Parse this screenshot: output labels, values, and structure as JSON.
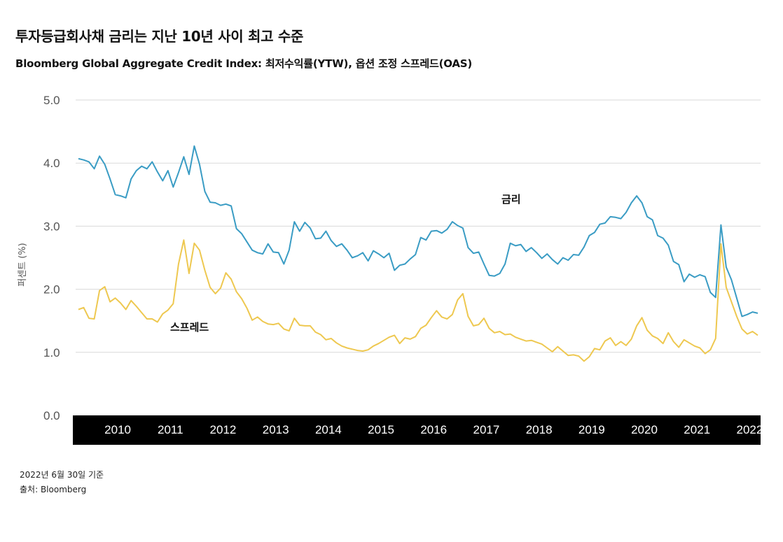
{
  "title": "투자등급회사채 금리는 지난 10년 사이 최고 수준",
  "subtitle": "Bloomberg Global Aggregate Credit Index: 최저수익률(YTW), 옵션 조정 스프레드(OAS)",
  "footnote_date": "2022년 6월 30일 기준",
  "footnote_source": "출처: Bloomberg",
  "colors": {
    "rate": "#3a9cc4",
    "spread": "#eec850",
    "axis_band": "#000000",
    "grid": "#d9d9d9"
  },
  "chart_data": {
    "type": "line",
    "ylabel": "퍼센트 (%)",
    "ylim": [
      0,
      5
    ],
    "yticks": [
      "0.0",
      "1.0",
      "2.0",
      "3.0",
      "4.0",
      "5.0"
    ],
    "xlim": [
      2009.6,
      2022.5
    ],
    "x_tick_labels": [
      "2010",
      "2011",
      "2012",
      "2013",
      "2014",
      "2015",
      "2016",
      "2017",
      "2018",
      "2019",
      "2020",
      "2021",
      "2022"
    ],
    "x_tick_values": [
      2010,
      2011,
      2012,
      2013,
      2014,
      2015,
      2016,
      2017,
      2018,
      2019,
      2020,
      2021,
      2022
    ],
    "series": [
      {
        "name": "금리",
        "color": "#3a9cc4",
        "points": [
          [
            2009.6,
            4.07
          ],
          [
            2009.7,
            4.05
          ],
          [
            2009.8,
            4.02
          ],
          [
            2009.9,
            3.91
          ],
          [
            2010.0,
            4.11
          ],
          [
            2010.1,
            3.98
          ],
          [
            2010.2,
            3.75
          ],
          [
            2010.3,
            3.5
          ],
          [
            2010.4,
            3.48
          ],
          [
            2010.5,
            3.45
          ],
          [
            2010.6,
            3.75
          ],
          [
            2010.7,
            3.88
          ],
          [
            2010.8,
            3.95
          ],
          [
            2010.9,
            3.91
          ],
          [
            2011.0,
            4.02
          ],
          [
            2011.1,
            3.86
          ],
          [
            2011.2,
            3.72
          ],
          [
            2011.3,
            3.88
          ],
          [
            2011.4,
            3.62
          ],
          [
            2011.5,
            3.85
          ],
          [
            2011.6,
            4.1
          ],
          [
            2011.7,
            3.82
          ],
          [
            2011.8,
            4.27
          ],
          [
            2011.9,
            3.98
          ],
          [
            2012.0,
            3.55
          ],
          [
            2012.1,
            3.38
          ],
          [
            2012.2,
            3.37
          ],
          [
            2012.3,
            3.33
          ],
          [
            2012.4,
            3.35
          ],
          [
            2012.5,
            3.32
          ],
          [
            2012.6,
            2.96
          ],
          [
            2012.7,
            2.88
          ],
          [
            2012.8,
            2.75
          ],
          [
            2012.9,
            2.62
          ],
          [
            2013.0,
            2.58
          ],
          [
            2013.1,
            2.56
          ],
          [
            2013.2,
            2.72
          ],
          [
            2013.3,
            2.59
          ],
          [
            2013.4,
            2.58
          ],
          [
            2013.5,
            2.4
          ],
          [
            2013.6,
            2.62
          ],
          [
            2013.7,
            3.07
          ],
          [
            2013.8,
            2.92
          ],
          [
            2013.9,
            3.06
          ],
          [
            2014.0,
            2.97
          ],
          [
            2014.1,
            2.8
          ],
          [
            2014.2,
            2.81
          ],
          [
            2014.3,
            2.92
          ],
          [
            2014.4,
            2.77
          ],
          [
            2014.5,
            2.68
          ],
          [
            2014.6,
            2.72
          ],
          [
            2014.7,
            2.62
          ],
          [
            2014.8,
            2.5
          ],
          [
            2014.9,
            2.53
          ],
          [
            2015.0,
            2.58
          ],
          [
            2015.1,
            2.45
          ],
          [
            2015.2,
            2.61
          ],
          [
            2015.3,
            2.56
          ],
          [
            2015.4,
            2.5
          ],
          [
            2015.5,
            2.57
          ],
          [
            2015.6,
            2.3
          ],
          [
            2015.7,
            2.38
          ],
          [
            2015.8,
            2.4
          ],
          [
            2015.9,
            2.48
          ],
          [
            2016.0,
            2.55
          ],
          [
            2016.1,
            2.82
          ],
          [
            2016.2,
            2.78
          ],
          [
            2016.3,
            2.92
          ],
          [
            2016.4,
            2.93
          ],
          [
            2016.5,
            2.89
          ],
          [
            2016.6,
            2.95
          ],
          [
            2016.7,
            3.07
          ],
          [
            2016.8,
            3.01
          ],
          [
            2016.9,
            2.97
          ],
          [
            2017.0,
            2.66
          ],
          [
            2017.1,
            2.57
          ],
          [
            2017.2,
            2.59
          ],
          [
            2017.3,
            2.4
          ],
          [
            2017.4,
            2.22
          ],
          [
            2017.5,
            2.21
          ],
          [
            2017.6,
            2.25
          ],
          [
            2017.7,
            2.4
          ],
          [
            2017.8,
            2.73
          ],
          [
            2017.9,
            2.69
          ],
          [
            2018.0,
            2.71
          ],
          [
            2018.1,
            2.6
          ],
          [
            2018.2,
            2.66
          ],
          [
            2018.3,
            2.58
          ],
          [
            2018.4,
            2.49
          ],
          [
            2018.5,
            2.56
          ],
          [
            2018.6,
            2.47
          ],
          [
            2018.7,
            2.4
          ],
          [
            2018.8,
            2.5
          ],
          [
            2018.9,
            2.46
          ],
          [
            2019.0,
            2.55
          ],
          [
            2019.1,
            2.54
          ],
          [
            2019.2,
            2.67
          ],
          [
            2019.3,
            2.85
          ],
          [
            2019.4,
            2.9
          ],
          [
            2019.5,
            3.03
          ],
          [
            2019.6,
            3.05
          ],
          [
            2019.7,
            3.15
          ],
          [
            2019.8,
            3.14
          ],
          [
            2019.9,
            3.12
          ],
          [
            2020.0,
            3.22
          ],
          [
            2020.1,
            3.37
          ],
          [
            2020.2,
            3.48
          ],
          [
            2020.3,
            3.37
          ],
          [
            2020.4,
            3.15
          ],
          [
            2020.5,
            3.1
          ],
          [
            2020.6,
            2.85
          ],
          [
            2020.7,
            2.81
          ],
          [
            2020.8,
            2.7
          ],
          [
            2020.9,
            2.44
          ],
          [
            2021.0,
            2.39
          ],
          [
            2021.1,
            2.12
          ],
          [
            2021.2,
            2.24
          ],
          [
            2021.3,
            2.19
          ],
          [
            2021.4,
            2.23
          ],
          [
            2021.5,
            2.2
          ],
          [
            2021.6,
            1.95
          ],
          [
            2021.7,
            1.87
          ],
          [
            2021.8,
            3.02
          ],
          [
            2021.9,
            2.35
          ],
          [
            2022.0,
            2.15
          ],
          [
            2022.1,
            1.86
          ],
          [
            2022.2,
            1.57
          ],
          [
            2022.3,
            1.6
          ],
          [
            2022.4,
            1.64
          ],
          [
            2022.5,
            1.62
          ]
        ]
      },
      {
        "name": "스프레드",
        "color": "#eec850",
        "points": [
          [
            2009.6,
            1.68
          ],
          [
            2009.7,
            1.71
          ],
          [
            2009.8,
            1.54
          ],
          [
            2009.9,
            1.53
          ],
          [
            2010.0,
            1.98
          ],
          [
            2010.1,
            2.04
          ],
          [
            2010.2,
            1.8
          ],
          [
            2010.3,
            1.86
          ],
          [
            2010.4,
            1.78
          ],
          [
            2010.5,
            1.68
          ],
          [
            2010.6,
            1.82
          ],
          [
            2010.7,
            1.73
          ],
          [
            2010.8,
            1.63
          ],
          [
            2010.9,
            1.53
          ],
          [
            2011.0,
            1.53
          ],
          [
            2011.1,
            1.48
          ],
          [
            2011.2,
            1.61
          ],
          [
            2011.3,
            1.67
          ],
          [
            2011.4,
            1.77
          ],
          [
            2011.5,
            2.4
          ],
          [
            2011.6,
            2.78
          ],
          [
            2011.7,
            2.25
          ],
          [
            2011.8,
            2.73
          ],
          [
            2011.9,
            2.62
          ],
          [
            2012.0,
            2.3
          ],
          [
            2012.1,
            2.03
          ],
          [
            2012.2,
            1.93
          ],
          [
            2012.3,
            2.02
          ],
          [
            2012.4,
            2.26
          ],
          [
            2012.5,
            2.16
          ],
          [
            2012.6,
            1.96
          ],
          [
            2012.7,
            1.85
          ],
          [
            2012.8,
            1.7
          ],
          [
            2012.9,
            1.51
          ],
          [
            2013.0,
            1.56
          ],
          [
            2013.1,
            1.49
          ],
          [
            2013.2,
            1.45
          ],
          [
            2013.3,
            1.44
          ],
          [
            2013.4,
            1.46
          ],
          [
            2013.5,
            1.37
          ],
          [
            2013.6,
            1.34
          ],
          [
            2013.7,
            1.54
          ],
          [
            2013.8,
            1.43
          ],
          [
            2013.9,
            1.42
          ],
          [
            2014.0,
            1.42
          ],
          [
            2014.1,
            1.32
          ],
          [
            2014.2,
            1.28
          ],
          [
            2014.3,
            1.2
          ],
          [
            2014.4,
            1.22
          ],
          [
            2014.5,
            1.15
          ],
          [
            2014.6,
            1.1
          ],
          [
            2014.7,
            1.07
          ],
          [
            2014.8,
            1.05
          ],
          [
            2014.9,
            1.03
          ],
          [
            2015.0,
            1.02
          ],
          [
            2015.1,
            1.04
          ],
          [
            2015.2,
            1.1
          ],
          [
            2015.3,
            1.14
          ],
          [
            2015.4,
            1.19
          ],
          [
            2015.5,
            1.24
          ],
          [
            2015.6,
            1.27
          ],
          [
            2015.7,
            1.14
          ],
          [
            2015.8,
            1.23
          ],
          [
            2015.9,
            1.21
          ],
          [
            2016.0,
            1.25
          ],
          [
            2016.1,
            1.38
          ],
          [
            2016.2,
            1.43
          ],
          [
            2016.3,
            1.55
          ],
          [
            2016.4,
            1.66
          ],
          [
            2016.5,
            1.56
          ],
          [
            2016.6,
            1.53
          ],
          [
            2016.7,
            1.6
          ],
          [
            2016.8,
            1.83
          ],
          [
            2016.9,
            1.93
          ],
          [
            2017.0,
            1.57
          ],
          [
            2017.1,
            1.42
          ],
          [
            2017.2,
            1.44
          ],
          [
            2017.3,
            1.54
          ],
          [
            2017.4,
            1.38
          ],
          [
            2017.5,
            1.31
          ],
          [
            2017.6,
            1.33
          ],
          [
            2017.7,
            1.28
          ],
          [
            2017.8,
            1.29
          ],
          [
            2017.9,
            1.24
          ],
          [
            2018.0,
            1.21
          ],
          [
            2018.1,
            1.18
          ],
          [
            2018.2,
            1.19
          ],
          [
            2018.3,
            1.16
          ],
          [
            2018.4,
            1.13
          ],
          [
            2018.5,
            1.07
          ],
          [
            2018.6,
            1.01
          ],
          [
            2018.7,
            1.09
          ],
          [
            2018.8,
            1.02
          ],
          [
            2018.9,
            0.95
          ],
          [
            2019.0,
            0.96
          ],
          [
            2019.1,
            0.94
          ],
          [
            2019.2,
            0.86
          ],
          [
            2019.3,
            0.93
          ],
          [
            2019.4,
            1.06
          ],
          [
            2019.5,
            1.04
          ],
          [
            2019.6,
            1.18
          ],
          [
            2019.7,
            1.23
          ],
          [
            2019.8,
            1.11
          ],
          [
            2019.9,
            1.17
          ],
          [
            2020.0,
            1.11
          ],
          [
            2020.1,
            1.21
          ],
          [
            2020.2,
            1.42
          ],
          [
            2020.3,
            1.55
          ],
          [
            2020.4,
            1.35
          ],
          [
            2020.5,
            1.26
          ],
          [
            2020.6,
            1.22
          ],
          [
            2020.7,
            1.14
          ],
          [
            2020.8,
            1.31
          ],
          [
            2020.9,
            1.17
          ],
          [
            2021.0,
            1.08
          ],
          [
            2021.1,
            1.2
          ],
          [
            2021.2,
            1.15
          ],
          [
            2021.3,
            1.1
          ],
          [
            2021.4,
            1.07
          ],
          [
            2021.5,
            0.98
          ],
          [
            2021.6,
            1.04
          ],
          [
            2021.7,
            1.22
          ],
          [
            2021.8,
            2.72
          ],
          [
            2021.9,
            2.03
          ],
          [
            2022.0,
            1.8
          ],
          [
            2022.1,
            1.57
          ],
          [
            2022.2,
            1.37
          ],
          [
            2022.3,
            1.29
          ],
          [
            2022.4,
            1.33
          ],
          [
            2022.5,
            1.27
          ]
        ]
      }
    ],
    "annotations": [
      {
        "text": "금리",
        "series": "금리"
      },
      {
        "text": "스프레드",
        "series": "스프레드"
      }
    ]
  }
}
